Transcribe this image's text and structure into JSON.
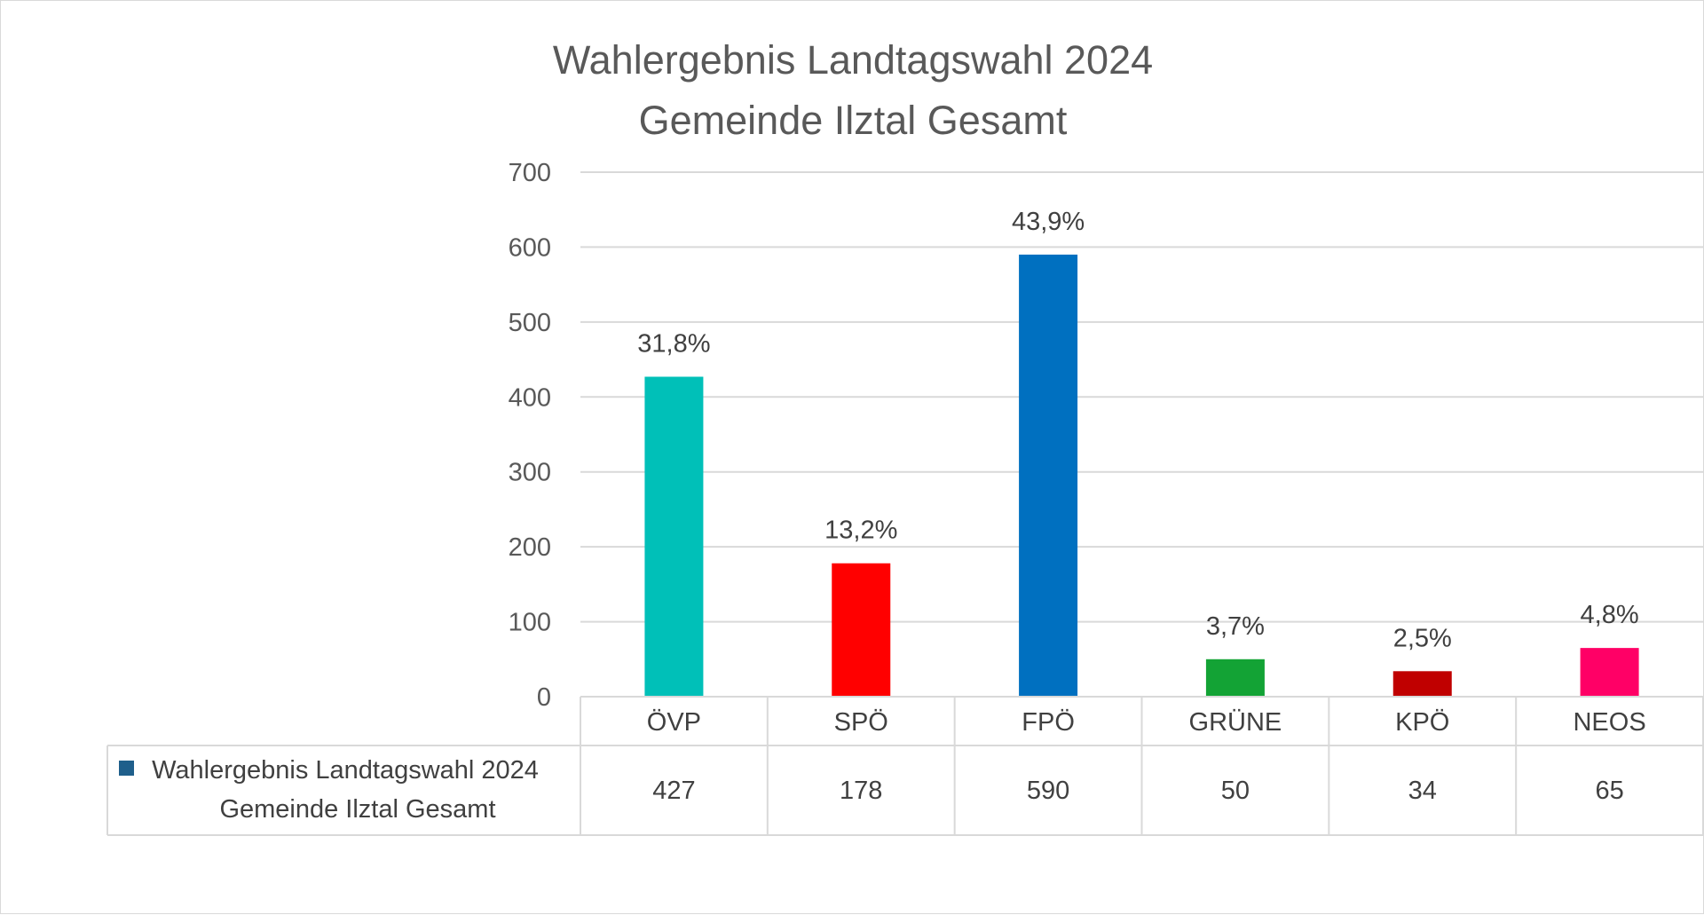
{
  "chart_data": {
    "type": "bar",
    "title": [
      "Wahlergebnis Landtagswahl 2024",
      "Gemeinde Ilztal Gesamt"
    ],
    "categories": [
      "ÖVP",
      "SPÖ",
      "FPÖ",
      "GRÜNE",
      "KPÖ",
      "NEOS"
    ],
    "series": [
      {
        "name": "Wahlergebnis Landtagswahl 2024 Gemeinde Ilztal Gesamt",
        "name_lines": [
          "Wahlergebnis Landtagswahl 2024",
          "Gemeinde Ilztal Gesamt"
        ],
        "values": [
          427,
          178,
          590,
          50,
          34,
          65
        ],
        "data_labels": [
          "31,8%",
          "13,2%",
          "43,9%",
          "3,7%",
          "2,5%",
          "4,8%"
        ],
        "bar_colors": [
          "#00c0b8",
          "#ff0000",
          "#0070c0",
          "#13a335",
          "#c00000",
          "#ff0066"
        ],
        "legend_color": "#1f5f8b"
      }
    ],
    "y_ticks": [
      0,
      100,
      200,
      300,
      400,
      500,
      600,
      700
    ],
    "ylim": [
      0,
      700
    ],
    "grid": true,
    "data_table": true,
    "legend": "data-table"
  }
}
